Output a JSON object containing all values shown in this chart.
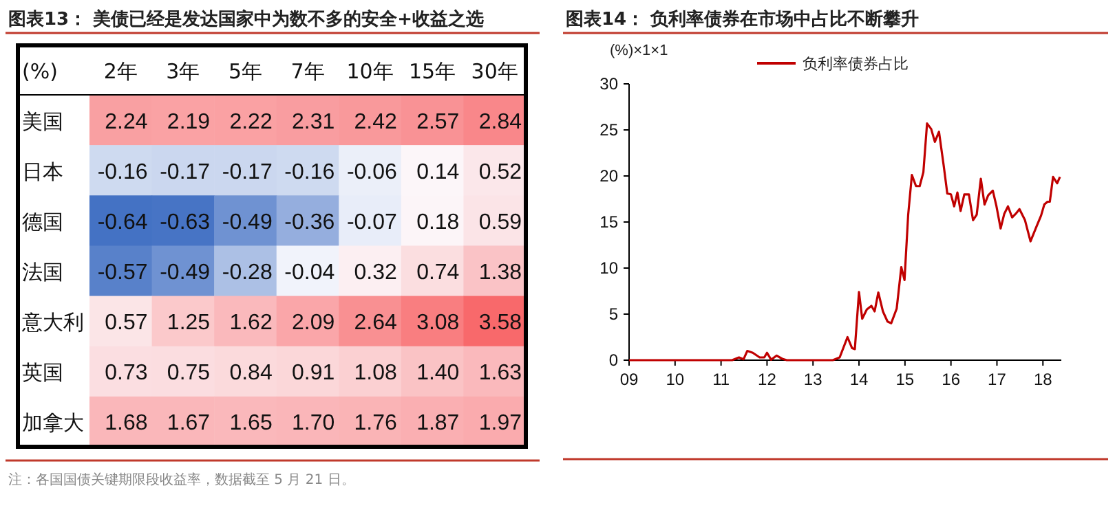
{
  "chart_data": [
    {
      "type": "heatmap",
      "title": "图表13： 美债已经是发达国家中为数不多的安全+收益之选",
      "clabel": "(%)",
      "categories": [
        "2年",
        "3年",
        "5年",
        "7年",
        "10年",
        "15年",
        "30年"
      ],
      "y_categories": [
        "美国",
        "日本",
        "德国",
        "法国",
        "意大利",
        "英国",
        "加拿大"
      ],
      "cells": [
        [
          2.24,
          2.19,
          2.22,
          2.31,
          2.42,
          2.57,
          2.84
        ],
        [
          -0.16,
          -0.17,
          -0.17,
          -0.16,
          -0.06,
          0.14,
          0.52
        ],
        [
          -0.64,
          -0.63,
          -0.49,
          -0.36,
          -0.07,
          0.18,
          0.59
        ],
        [
          -0.57,
          -0.49,
          -0.28,
          -0.04,
          0.32,
          0.74,
          1.38
        ],
        [
          0.57,
          1.25,
          1.62,
          2.09,
          2.64,
          3.08,
          3.58
        ],
        [
          0.73,
          0.75,
          0.84,
          0.91,
          1.08,
          1.4,
          1.63
        ],
        [
          1.68,
          1.67,
          1.65,
          1.7,
          1.76,
          1.87,
          1.97
        ]
      ],
      "cell_labels": [
        [
          "2.24",
          "2.19",
          "2.22",
          "2.31",
          "2.42",
          "2.57",
          "2.84"
        ],
        [
          "-0.16",
          "-0.17",
          "-0.17",
          "-0.16",
          "-0.06",
          "0.14",
          "0.52"
        ],
        [
          "-0.64",
          "-0.63",
          "-0.49",
          "-0.36",
          "-0.07",
          "0.18",
          "0.59"
        ],
        [
          "-0.57",
          "-0.49",
          "-0.28",
          "-0.04",
          "0.32",
          "0.74",
          "1.38"
        ],
        [
          "0.57",
          "1.25",
          "1.62",
          "2.09",
          "2.64",
          "3.08",
          "3.58"
        ],
        [
          "0.73",
          "0.75",
          "0.84",
          "0.91",
          "1.08",
          "1.40",
          "1.63"
        ],
        [
          "1.68",
          "1.67",
          "1.65",
          "1.70",
          "1.76",
          "1.87",
          "1.97"
        ]
      ],
      "annotations": [
        "注：各国国债关键期限段收益率，数据截至 5 月 21 日。"
      ]
    },
    {
      "type": "line",
      "title": "图表14： 负利率债券在市场中占比不断攀升",
      "ylabel": "(%)×1×1",
      "legend": "top",
      "xlim": [
        9,
        18.4
      ],
      "xticks": [
        {
          "value": 9,
          "label": "09"
        },
        10,
        11,
        12,
        13,
        14,
        15,
        16,
        17,
        18
      ],
      "ylim": [
        0,
        30
      ],
      "yticks": [
        0,
        5,
        10,
        15,
        20,
        25,
        30
      ],
      "series": [
        {
          "name": "负利率债券占比",
          "color": "#c00000",
          "x": [
            9,
            11.24,
            11.39,
            11.49,
            11.57,
            11.69,
            11.84,
            11.94,
            12.0,
            12.09,
            12.21,
            12.33,
            12.43,
            13.43,
            13.58,
            13.75,
            13.85,
            13.91,
            14.0,
            14.07,
            14.17,
            14.27,
            14.34,
            14.42,
            14.52,
            14.62,
            14.7,
            14.82,
            14.92,
            14.99,
            15.07,
            15.15,
            15.24,
            15.32,
            15.4,
            15.48,
            15.57,
            15.65,
            15.74,
            15.84,
            15.92,
            16.0,
            16.07,
            16.14,
            16.21,
            16.29,
            16.39,
            16.48,
            16.56,
            16.65,
            16.73,
            16.81,
            16.91,
            16.99,
            17.08,
            17.16,
            17.24,
            17.33,
            17.41,
            17.49,
            17.61,
            17.73,
            17.86,
            17.96,
            18.03,
            18.1,
            18.15,
            18.22,
            18.31,
            18.37
          ],
          "values": [
            0,
            0,
            0.3,
            0.1,
            1.0,
            0.8,
            0.3,
            0.3,
            0.8,
            0.05,
            0.5,
            0.15,
            0,
            0,
            0.3,
            2.5,
            1.3,
            1.2,
            7.4,
            4.5,
            5.5,
            5.9,
            5.3,
            7.35,
            5.3,
            4.2,
            4.0,
            5.6,
            10.1,
            8.7,
            15.8,
            20.1,
            18.9,
            18.9,
            20.4,
            25.7,
            25.1,
            23.7,
            24.8,
            21.2,
            18.1,
            18.0,
            16.7,
            18.2,
            16.2,
            18.0,
            18.0,
            15.2,
            15.8,
            19.7,
            16.9,
            17.9,
            18.4,
            16.7,
            14.3,
            15.9,
            16.7,
            15.5,
            15.9,
            16.4,
            15.2,
            12.9,
            14.5,
            15.7,
            16.9,
            17.2,
            17.2,
            19.9,
            19.2,
            19.9
          ]
        }
      ]
    }
  ]
}
